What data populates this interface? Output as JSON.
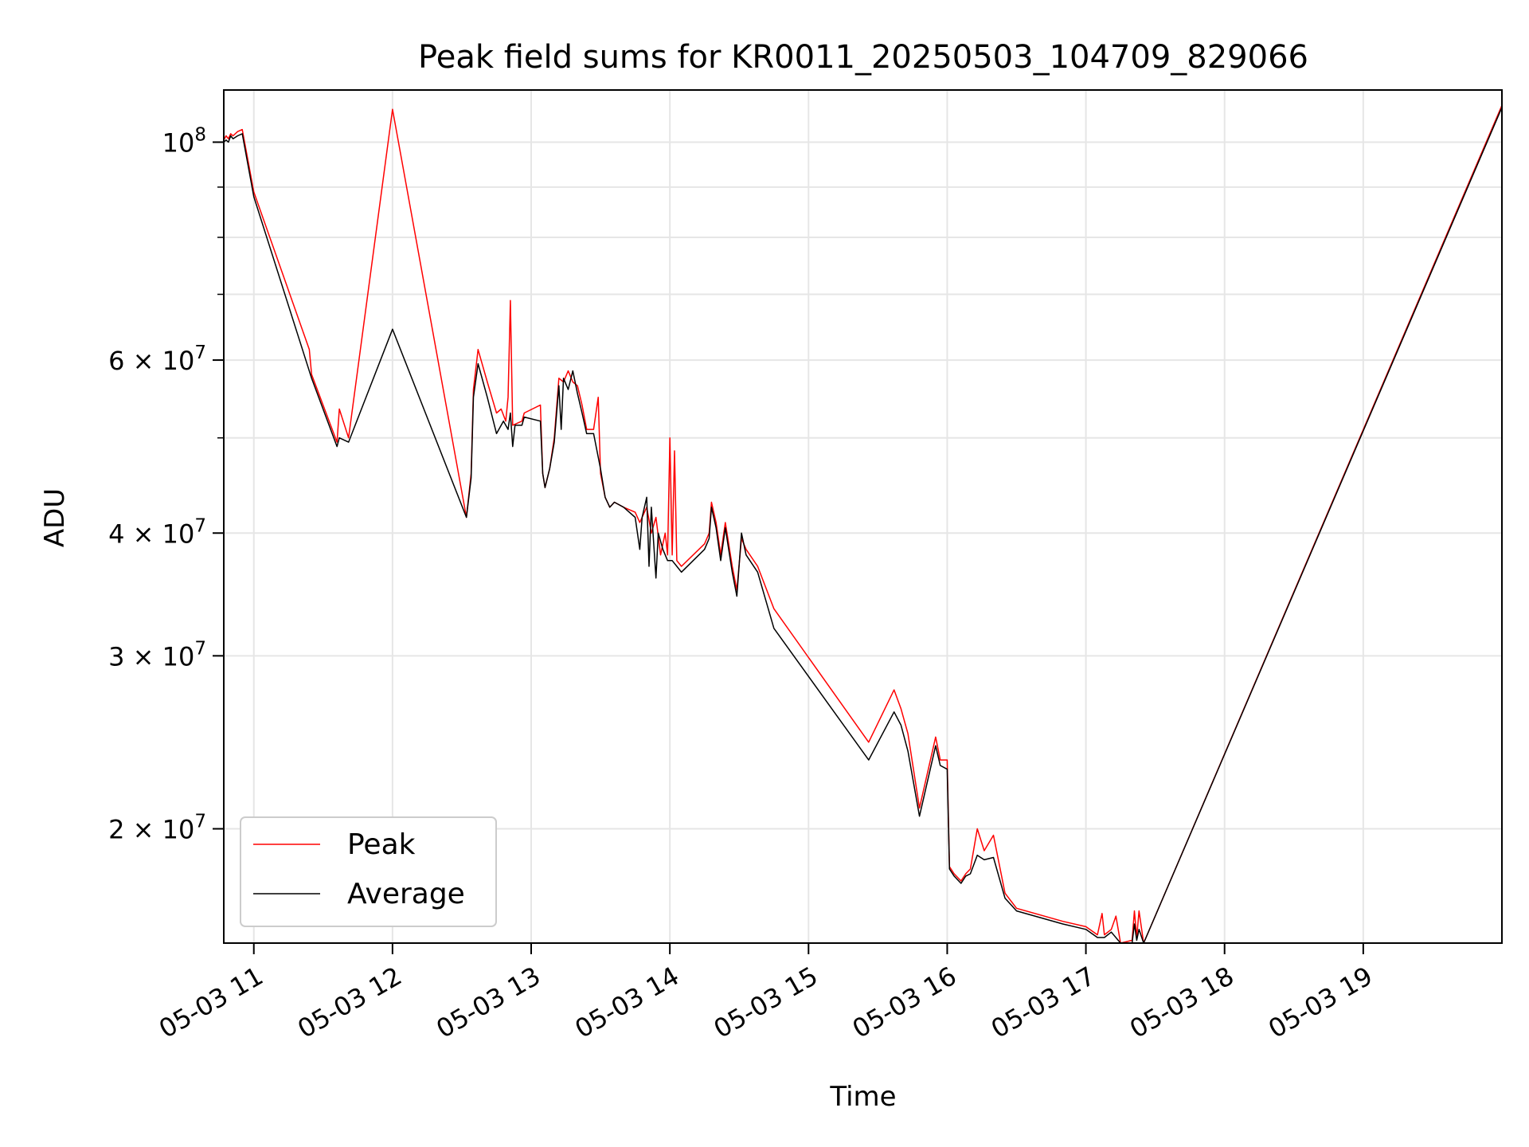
{
  "chart_data": {
    "type": "line",
    "title": "Peak field sums for KR0011_20250503_104709_829066",
    "xlabel": "Time",
    "ylabel": "ADU",
    "x_axis": {
      "kind": "datetime",
      "range": [
        "2025-05-03 10:47",
        "2025-05-03 20:00"
      ],
      "ticks": [
        {
          "value": "2025-05-03 11:00",
          "label": "05-03 11"
        },
        {
          "value": "2025-05-03 12:00",
          "label": "05-03 12"
        },
        {
          "value": "2025-05-03 13:00",
          "label": "05-03 13"
        },
        {
          "value": "2025-05-03 14:00",
          "label": "05-03 14"
        },
        {
          "value": "2025-05-03 15:00",
          "label": "05-03 15"
        },
        {
          "value": "2025-05-03 16:00",
          "label": "05-03 16"
        },
        {
          "value": "2025-05-03 17:00",
          "label": "05-03 17"
        },
        {
          "value": "2025-05-03 18:00",
          "label": "05-03 18"
        },
        {
          "value": "2025-05-03 19:00",
          "label": "05-03 19"
        }
      ]
    },
    "y_axis": {
      "scale": "log",
      "range": [
        15300000,
        113000000
      ],
      "labeled_ticks": [
        {
          "value": 100000000,
          "base": "10",
          "exp": "8"
        },
        {
          "value": 60000000,
          "base": "6 × 10",
          "exp": "7"
        },
        {
          "value": 40000000,
          "base": "4 × 10",
          "exp": "7"
        },
        {
          "value": 30000000,
          "base": "3 × 10",
          "exp": "7"
        },
        {
          "value": 20000000,
          "base": "2 × 10",
          "exp": "7"
        }
      ],
      "minor_ticks": [
        20000000,
        30000000,
        40000000,
        50000000,
        60000000,
        70000000,
        80000000,
        90000000,
        100000000
      ]
    },
    "grid": true,
    "legend_position": "lower-left",
    "series": [
      {
        "name": "Peak",
        "color": "#ff0000",
        "points": [
          [
            "2025-05-03 10:47",
            100500000
          ],
          [
            "2025-05-03 10:48",
            101500000
          ],
          [
            "2025-05-03 10:49",
            100800000
          ],
          [
            "2025-05-03 10:50",
            102000000
          ],
          [
            "2025-05-03 10:51",
            101500000
          ],
          [
            "2025-05-03 10:53",
            102500000
          ],
          [
            "2025-05-03 10:55",
            103000000
          ],
          [
            "2025-05-03 11:00",
            89000000
          ],
          [
            "2025-05-03 11:24",
            61500000
          ],
          [
            "2025-05-03 11:25",
            58000000
          ],
          [
            "2025-05-03 11:36",
            49500000
          ],
          [
            "2025-05-03 11:37",
            53500000
          ],
          [
            "2025-05-03 11:41",
            50000000
          ],
          [
            "2025-05-03 12:00",
            108000000
          ],
          [
            "2025-05-03 12:32",
            41500000
          ],
          [
            "2025-05-03 12:34",
            46000000
          ],
          [
            "2025-05-03 12:35",
            56000000
          ],
          [
            "2025-05-03 12:37",
            61500000
          ],
          [
            "2025-05-03 12:41",
            57000000
          ],
          [
            "2025-05-03 12:45",
            53000000
          ],
          [
            "2025-05-03 12:47",
            53500000
          ],
          [
            "2025-05-03 12:49",
            52000000
          ],
          [
            "2025-05-03 12:50",
            55000000
          ],
          [
            "2025-05-03 12:51",
            69000000
          ],
          [
            "2025-05-03 12:52",
            51500000
          ],
          [
            "2025-05-03 12:56",
            52000000
          ],
          [
            "2025-05-03 12:57",
            53000000
          ],
          [
            "2025-05-03 13:04",
            54000000
          ],
          [
            "2025-05-03 13:05",
            46000000
          ],
          [
            "2025-05-03 13:06",
            44500000
          ],
          [
            "2025-05-03 13:08",
            46500000
          ],
          [
            "2025-05-03 13:10",
            50000000
          ],
          [
            "2025-05-03 13:12",
            57500000
          ],
          [
            "2025-05-03 13:14",
            57000000
          ],
          [
            "2025-05-03 13:16",
            58500000
          ],
          [
            "2025-05-03 13:18",
            57000000
          ],
          [
            "2025-05-03 13:20",
            56500000
          ],
          [
            "2025-05-03 13:22",
            54000000
          ],
          [
            "2025-05-03 13:24",
            51000000
          ],
          [
            "2025-05-03 13:27",
            51000000
          ],
          [
            "2025-05-03 13:29",
            55000000
          ],
          [
            "2025-05-03 13:30",
            46000000
          ],
          [
            "2025-05-03 13:32",
            43500000
          ],
          [
            "2025-05-03 13:34",
            42500000
          ],
          [
            "2025-05-03 13:36",
            43000000
          ],
          [
            "2025-05-03 13:40",
            42500000
          ],
          [
            "2025-05-03 13:45",
            42000000
          ],
          [
            "2025-05-03 13:47",
            41000000
          ],
          [
            "2025-05-03 13:50",
            42500000
          ],
          [
            "2025-05-03 13:52",
            40000000
          ],
          [
            "2025-05-03 13:54",
            41500000
          ],
          [
            "2025-05-03 13:56",
            38000000
          ],
          [
            "2025-05-03 13:58",
            40000000
          ],
          [
            "2025-05-03 13:59",
            38000000
          ],
          [
            "2025-05-03 14:00",
            50000000
          ],
          [
            "2025-05-03 14:01",
            38000000
          ],
          [
            "2025-05-03 14:02",
            48500000
          ],
          [
            "2025-05-03 14:03",
            37500000
          ],
          [
            "2025-05-03 14:05",
            37000000
          ],
          [
            "2025-05-03 14:15",
            39000000
          ],
          [
            "2025-05-03 14:17",
            40000000
          ],
          [
            "2025-05-03 14:18",
            43000000
          ],
          [
            "2025-05-03 14:20",
            41000000
          ],
          [
            "2025-05-03 14:22",
            38000000
          ],
          [
            "2025-05-03 14:24",
            41000000
          ],
          [
            "2025-05-03 14:27",
            37000000
          ],
          [
            "2025-05-03 14:29",
            35000000
          ],
          [
            "2025-05-03 14:31",
            39500000
          ],
          [
            "2025-05-03 14:33",
            38500000
          ],
          [
            "2025-05-03 14:38",
            37000000
          ],
          [
            "2025-05-03 14:45",
            33500000
          ],
          [
            "2025-05-03 15:26",
            24500000
          ],
          [
            "2025-05-03 15:37",
            27700000
          ],
          [
            "2025-05-03 15:40",
            26500000
          ],
          [
            "2025-05-03 15:43",
            25000000
          ],
          [
            "2025-05-03 15:48",
            21000000
          ],
          [
            "2025-05-03 15:55",
            24800000
          ],
          [
            "2025-05-03 15:57",
            23500000
          ],
          [
            "2025-05-03 16:00",
            23500000
          ],
          [
            "2025-05-03 16:01",
            18300000
          ],
          [
            "2025-05-03 16:03",
            18000000
          ],
          [
            "2025-05-03 16:06",
            17700000
          ],
          [
            "2025-05-03 16:08",
            18000000
          ],
          [
            "2025-05-03 16:10",
            18200000
          ],
          [
            "2025-05-03 16:13",
            20000000
          ],
          [
            "2025-05-03 16:16",
            19000000
          ],
          [
            "2025-05-03 16:20",
            19700000
          ],
          [
            "2025-05-03 16:25",
            17200000
          ],
          [
            "2025-05-03 16:30",
            16600000
          ],
          [
            "2025-05-03 16:50",
            16100000
          ],
          [
            "2025-05-03 17:00",
            15900000
          ],
          [
            "2025-05-03 17:05",
            15600000
          ],
          [
            "2025-05-03 17:07",
            16400000
          ],
          [
            "2025-05-03 17:08",
            15600000
          ],
          [
            "2025-05-03 17:11",
            15800000
          ],
          [
            "2025-05-03 17:13",
            16300000
          ],
          [
            "2025-05-03 17:15",
            15300000
          ],
          [
            "2025-05-03 17:20",
            15400000
          ],
          [
            "2025-05-03 17:21",
            16500000
          ],
          [
            "2025-05-03 17:22",
            15500000
          ],
          [
            "2025-05-03 17:23",
            16500000
          ],
          [
            "2025-05-03 17:25",
            15300000
          ],
          [
            "2025-05-03 20:00",
            109000000
          ]
        ]
      },
      {
        "name": "Average",
        "color": "#000000",
        "points": [
          [
            "2025-05-03 10:47",
            100000000
          ],
          [
            "2025-05-03 10:48",
            100500000
          ],
          [
            "2025-05-03 10:49",
            100000000
          ],
          [
            "2025-05-03 10:50",
            101500000
          ],
          [
            "2025-05-03 10:51",
            100800000
          ],
          [
            "2025-05-03 10:53",
            101500000
          ],
          [
            "2025-05-03 10:55",
            102000000
          ],
          [
            "2025-05-03 11:00",
            88000000
          ],
          [
            "2025-05-03 11:25",
            57500000
          ],
          [
            "2025-05-03 11:36",
            49000000
          ],
          [
            "2025-05-03 11:37",
            50000000
          ],
          [
            "2025-05-03 11:41",
            49500000
          ],
          [
            "2025-05-03 12:00",
            64500000
          ],
          [
            "2025-05-03 12:32",
            41500000
          ],
          [
            "2025-05-03 12:34",
            45500000
          ],
          [
            "2025-05-03 12:35",
            55000000
          ],
          [
            "2025-05-03 12:37",
            59500000
          ],
          [
            "2025-05-03 12:41",
            55000000
          ],
          [
            "2025-05-03 12:45",
            50500000
          ],
          [
            "2025-05-03 12:48",
            52000000
          ],
          [
            "2025-05-03 12:50",
            51000000
          ],
          [
            "2025-05-03 12:51",
            53000000
          ],
          [
            "2025-05-03 12:52",
            49000000
          ],
          [
            "2025-05-03 12:53",
            51500000
          ],
          [
            "2025-05-03 12:56",
            51500000
          ],
          [
            "2025-05-03 12:57",
            52500000
          ],
          [
            "2025-05-03 13:04",
            52000000
          ],
          [
            "2025-05-03 13:05",
            46000000
          ],
          [
            "2025-05-03 13:06",
            44500000
          ],
          [
            "2025-05-03 13:08",
            46500000
          ],
          [
            "2025-05-03 13:10",
            49500000
          ],
          [
            "2025-05-03 13:12",
            56500000
          ],
          [
            "2025-05-03 13:13",
            51000000
          ],
          [
            "2025-05-03 13:14",
            57500000
          ],
          [
            "2025-05-03 13:16",
            56000000
          ],
          [
            "2025-05-03 13:18",
            58500000
          ],
          [
            "2025-05-03 13:20",
            55500000
          ],
          [
            "2025-05-03 13:22",
            53000000
          ],
          [
            "2025-05-03 13:24",
            50500000
          ],
          [
            "2025-05-03 13:27",
            50500000
          ],
          [
            "2025-05-03 13:30",
            46500000
          ],
          [
            "2025-05-03 13:32",
            43500000
          ],
          [
            "2025-05-03 13:34",
            42500000
          ],
          [
            "2025-05-03 13:36",
            43000000
          ],
          [
            "2025-05-03 13:40",
            42500000
          ],
          [
            "2025-05-03 13:45",
            41500000
          ],
          [
            "2025-05-03 13:47",
            38500000
          ],
          [
            "2025-05-03 13:48",
            41500000
          ],
          [
            "2025-05-03 13:50",
            43500000
          ],
          [
            "2025-05-03 13:51",
            37000000
          ],
          [
            "2025-05-03 13:52",
            42500000
          ],
          [
            "2025-05-03 13:54",
            36000000
          ],
          [
            "2025-05-03 13:55",
            40000000
          ],
          [
            "2025-05-03 13:57",
            38500000
          ],
          [
            "2025-05-03 13:59",
            37500000
          ],
          [
            "2025-05-03 14:01",
            37500000
          ],
          [
            "2025-05-03 14:03",
            37000000
          ],
          [
            "2025-05-03 14:05",
            36500000
          ],
          [
            "2025-05-03 14:15",
            38500000
          ],
          [
            "2025-05-03 14:17",
            39500000
          ],
          [
            "2025-05-03 14:18",
            42500000
          ],
          [
            "2025-05-03 14:20",
            40500000
          ],
          [
            "2025-05-03 14:22",
            37500000
          ],
          [
            "2025-05-03 14:24",
            40500000
          ],
          [
            "2025-05-03 14:27",
            36500000
          ],
          [
            "2025-05-03 14:29",
            34500000
          ],
          [
            "2025-05-03 14:31",
            40000000
          ],
          [
            "2025-05-03 14:33",
            38000000
          ],
          [
            "2025-05-03 14:38",
            36500000
          ],
          [
            "2025-05-03 14:45",
            32000000
          ],
          [
            "2025-05-03 15:26",
            23500000
          ],
          [
            "2025-05-03 15:37",
            26300000
          ],
          [
            "2025-05-03 15:40",
            25500000
          ],
          [
            "2025-05-03 15:43",
            24000000
          ],
          [
            "2025-05-03 15:48",
            20600000
          ],
          [
            "2025-05-03 15:55",
            24300000
          ],
          [
            "2025-05-03 15:57",
            23200000
          ],
          [
            "2025-05-03 16:00",
            23000000
          ],
          [
            "2025-05-03 16:01",
            18200000
          ],
          [
            "2025-05-03 16:03",
            17900000
          ],
          [
            "2025-05-03 16:06",
            17600000
          ],
          [
            "2025-05-03 16:08",
            17900000
          ],
          [
            "2025-05-03 16:10",
            18000000
          ],
          [
            "2025-05-03 16:13",
            18800000
          ],
          [
            "2025-05-03 16:16",
            18600000
          ],
          [
            "2025-05-03 16:20",
            18700000
          ],
          [
            "2025-05-03 16:25",
            17000000
          ],
          [
            "2025-05-03 16:30",
            16500000
          ],
          [
            "2025-05-03 16:50",
            16000000
          ],
          [
            "2025-05-03 17:00",
            15800000
          ],
          [
            "2025-05-03 17:05",
            15500000
          ],
          [
            "2025-05-03 17:08",
            15500000
          ],
          [
            "2025-05-03 17:11",
            15700000
          ],
          [
            "2025-05-03 17:15",
            15300000
          ],
          [
            "2025-05-03 17:20",
            15300000
          ],
          [
            "2025-05-03 17:21",
            16000000
          ],
          [
            "2025-05-03 17:22",
            15400000
          ],
          [
            "2025-05-03 17:23",
            15800000
          ],
          [
            "2025-05-03 17:25",
            15300000
          ],
          [
            "2025-05-03 20:00",
            108500000
          ]
        ]
      }
    ]
  }
}
